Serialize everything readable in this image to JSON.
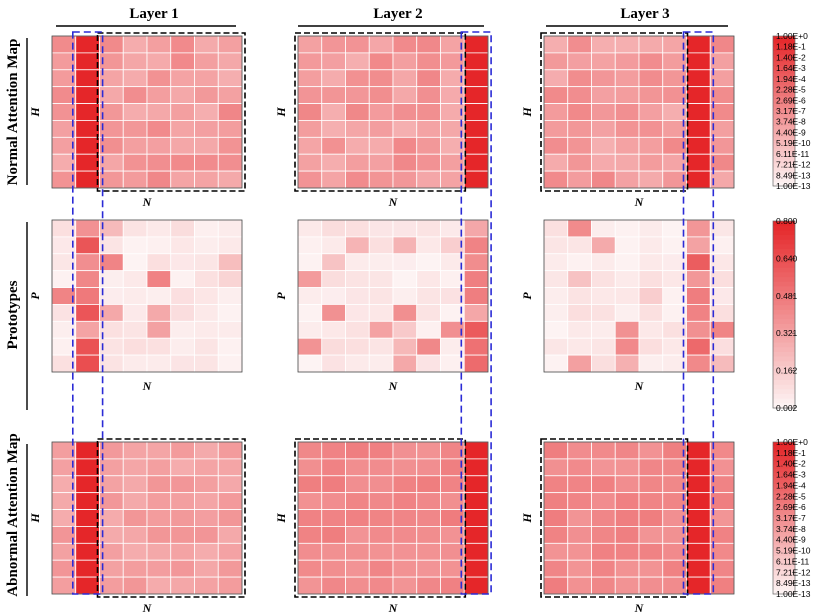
{
  "chart_data": {
    "type": "heatmap",
    "column_titles": [
      "Layer 1",
      "Layer 2",
      "Layer 3"
    ],
    "row_titles": [
      "Normal Attention Map",
      "Prototypes",
      "Abnormal Attention Map"
    ],
    "row_ylabels": [
      "H",
      "P",
      "H"
    ],
    "xlabel": "N",
    "highlighted_token_column": [
      1,
      7,
      6
    ],
    "grid": {
      "rows": 9,
      "cols": 8
    },
    "colorbars": [
      {
        "scale": "log",
        "tick_labels": [
          "1.00E+0",
          "1.18E-1",
          "1.40E-2",
          "1.64E-3",
          "1.94E-4",
          "2.28E-5",
          "2.69E-6",
          "3.17E-7",
          "3.74E-8",
          "4.40E-9",
          "5.19E-10",
          "6.11E-11",
          "7.21E-12",
          "8.49E-13",
          "1.00E-13"
        ]
      },
      {
        "scale": "linear",
        "tick_labels": [
          "0.800",
          "0.640",
          "0.481",
          "0.321",
          "0.162",
          "0.002"
        ]
      },
      {
        "scale": "log",
        "tick_labels": [
          "1.00E+0",
          "1.18E-1",
          "1.40E-2",
          "1.64E-3",
          "1.94E-4",
          "2.28E-5",
          "2.69E-6",
          "3.17E-7",
          "3.74E-8",
          "4.40E-9",
          "5.19E-10",
          "6.11E-11",
          "7.21E-12",
          "8.49E-13",
          "1.00E-13"
        ]
      }
    ],
    "colors": {
      "low": "#fdf3f3",
      "high": "#e52629",
      "highlight_box": "#2b2bd6",
      "region_box": "#000000"
    }
  }
}
